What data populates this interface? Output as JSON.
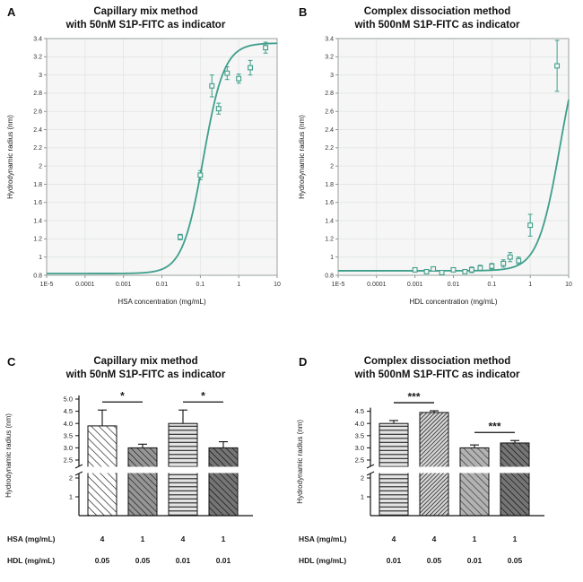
{
  "figure_bg": "#ffffff",
  "accent_color": "#3f9e8c",
  "panels": {
    "a": {
      "letter": "A",
      "title": "Capillary mix method\nwith 50nM S1P-FITC as indicator"
    },
    "b": {
      "letter": "B",
      "title": "Complex dissociation method\nwith 500nM S1P-FITC as indicator"
    },
    "c": {
      "letter": "C",
      "title": "Capillary mix method\nwith 50nM S1P-FITC as indicator"
    },
    "d": {
      "letter": "D",
      "title": "Complex dissociation method\nwith 500nM S1P-FITC as indicator"
    }
  },
  "chart_data": [
    {
      "id": "chart-a",
      "type": "scatter",
      "panel": "A",
      "title": "Capillary mix method with 50nM S1P-FITC as indicator",
      "xlabel": "HSA concentration (mg/mL)",
      "ylabel": "Hydrodynamic radius (nm)",
      "x_scale": "log",
      "xlim": [
        1e-05,
        10
      ],
      "ylim": [
        0.8,
        3.4
      ],
      "y_tick_step": 0.2,
      "x_ticks": [
        {
          "v": 1e-05,
          "label": "1E-5"
        },
        {
          "v": 0.0001,
          "label": "0.0001"
        },
        {
          "v": 0.001,
          "label": "0.001"
        },
        {
          "v": 0.01,
          "label": "0.01"
        },
        {
          "v": 0.1,
          "label": "0.1"
        },
        {
          "v": 1,
          "label": "1"
        },
        {
          "v": 10,
          "label": "10"
        }
      ],
      "curve": {
        "model": "sigmoid",
        "bottom": 0.82,
        "top": 3.35,
        "ec50": 0.12,
        "hill": 1.6,
        "color": "#3f9e8c"
      },
      "points": [
        [
          0.03,
          1.22,
          0.03
        ],
        [
          0.1,
          1.9,
          0.05
        ],
        [
          0.2,
          2.88,
          0.12
        ],
        [
          0.3,
          2.63,
          0.06
        ],
        [
          0.5,
          3.02,
          0.07
        ],
        [
          1,
          2.96,
          0.05
        ],
        [
          2,
          3.08,
          0.08
        ],
        [
          5,
          3.3,
          0.06
        ]
      ]
    },
    {
      "id": "chart-b",
      "type": "scatter",
      "panel": "B",
      "title": "Complex dissociation method with 500nM S1P-FITC as indicator",
      "xlabel": "HDL concentration (mg/mL)",
      "ylabel": "Hydrodynamic radius (nm)",
      "x_scale": "log",
      "xlim": [
        1e-05,
        10
      ],
      "ylim": [
        0.8,
        3.4
      ],
      "y_tick_step": 0.2,
      "x_ticks": [
        {
          "v": 1e-05,
          "label": "1E-5"
        },
        {
          "v": 0.0001,
          "label": "0.0001"
        },
        {
          "v": 0.001,
          "label": "0.001"
        },
        {
          "v": 0.01,
          "label": "0.01"
        },
        {
          "v": 0.1,
          "label": "0.1"
        },
        {
          "v": 1,
          "label": "1"
        },
        {
          "v": 10,
          "label": "10"
        }
      ],
      "curve": {
        "model": "sigmoid",
        "bottom": 0.85,
        "top": 3.6,
        "ec50": 6,
        "hill": 1.5,
        "color": "#3f9e8c"
      },
      "points": [
        [
          0.001,
          0.86,
          0.02
        ],
        [
          0.002,
          0.84,
          0.02
        ],
        [
          0.003,
          0.87,
          0.02
        ],
        [
          0.005,
          0.83,
          0.02
        ],
        [
          0.01,
          0.86,
          0.02
        ],
        [
          0.02,
          0.84,
          0.02
        ],
        [
          0.03,
          0.86,
          0.03
        ],
        [
          0.05,
          0.88,
          0.03
        ],
        [
          0.1,
          0.9,
          0.03
        ],
        [
          0.2,
          0.93,
          0.04
        ],
        [
          0.3,
          1.0,
          0.05
        ],
        [
          0.5,
          0.96,
          0.04
        ],
        [
          1,
          1.35,
          0.12
        ],
        [
          5,
          3.1,
          0.28
        ]
      ]
    },
    {
      "id": "chart-c",
      "type": "bar",
      "panel": "C",
      "title": "Capillary mix method with 50nM S1P-FITC as indicator",
      "ylabel": "Hydrodynamic radius (nm)",
      "axis_break": {
        "lower_ticks": [
          "1",
          "2"
        ],
        "upper_ticks": [
          "2.5",
          "3.0",
          "3.5",
          "4.0",
          "4.5",
          "5.0"
        ],
        "break_between": [
          2,
          2.5
        ]
      },
      "bars": [
        {
          "value": 3.9,
          "err": 0.65,
          "pattern": "diagLight"
        },
        {
          "value": 3.0,
          "err": 0.15,
          "pattern": "diagDark"
        },
        {
          "value": 4.0,
          "err": 0.55,
          "pattern": "horizLight"
        },
        {
          "value": 3.0,
          "err": 0.25,
          "pattern": "diagDarker"
        }
      ],
      "significance": [
        {
          "pair": [
            0,
            1
          ],
          "label": "*"
        },
        {
          "pair": [
            2,
            3
          ],
          "label": "*"
        }
      ],
      "row_labels": [
        "HSA (mg/mL)",
        "HDL (mg/mL)"
      ],
      "rows": [
        [
          "4",
          "1",
          "4",
          "1"
        ],
        [
          "0.05",
          "0.05",
          "0.01",
          "0.01"
        ]
      ]
    },
    {
      "id": "chart-d",
      "type": "bar",
      "panel": "D",
      "title": "Complex dissociation method with 500nM S1P-FITC as indicator",
      "ylabel": "Hydrodynamic radius (nm)",
      "axis_break": {
        "lower_ticks": [
          "1",
          "2"
        ],
        "upper_ticks": [
          "2.5",
          "3.0",
          "3.5",
          "4.0",
          "4.5"
        ],
        "break_between": [
          2,
          2.5
        ]
      },
      "bars": [
        {
          "value": 4.0,
          "err": 0.12,
          "pattern": "horizLight"
        },
        {
          "value": 4.45,
          "err": 0.07,
          "pattern": "diagDense"
        },
        {
          "value": 3.0,
          "err": 0.12,
          "pattern": "diagMed"
        },
        {
          "value": 3.2,
          "err": 0.1,
          "pattern": "diagDarker"
        }
      ],
      "significance": [
        {
          "pair": [
            0,
            1
          ],
          "label": "***"
        },
        {
          "pair": [
            2,
            3
          ],
          "label": "***"
        }
      ],
      "row_labels": [
        "HSA (mg/mL)",
        "HDL (mg/mL)"
      ],
      "rows": [
        [
          "4",
          "4",
          "1",
          "1"
        ],
        [
          "0.01",
          "0.05",
          "0.01",
          "0.05"
        ]
      ]
    }
  ]
}
